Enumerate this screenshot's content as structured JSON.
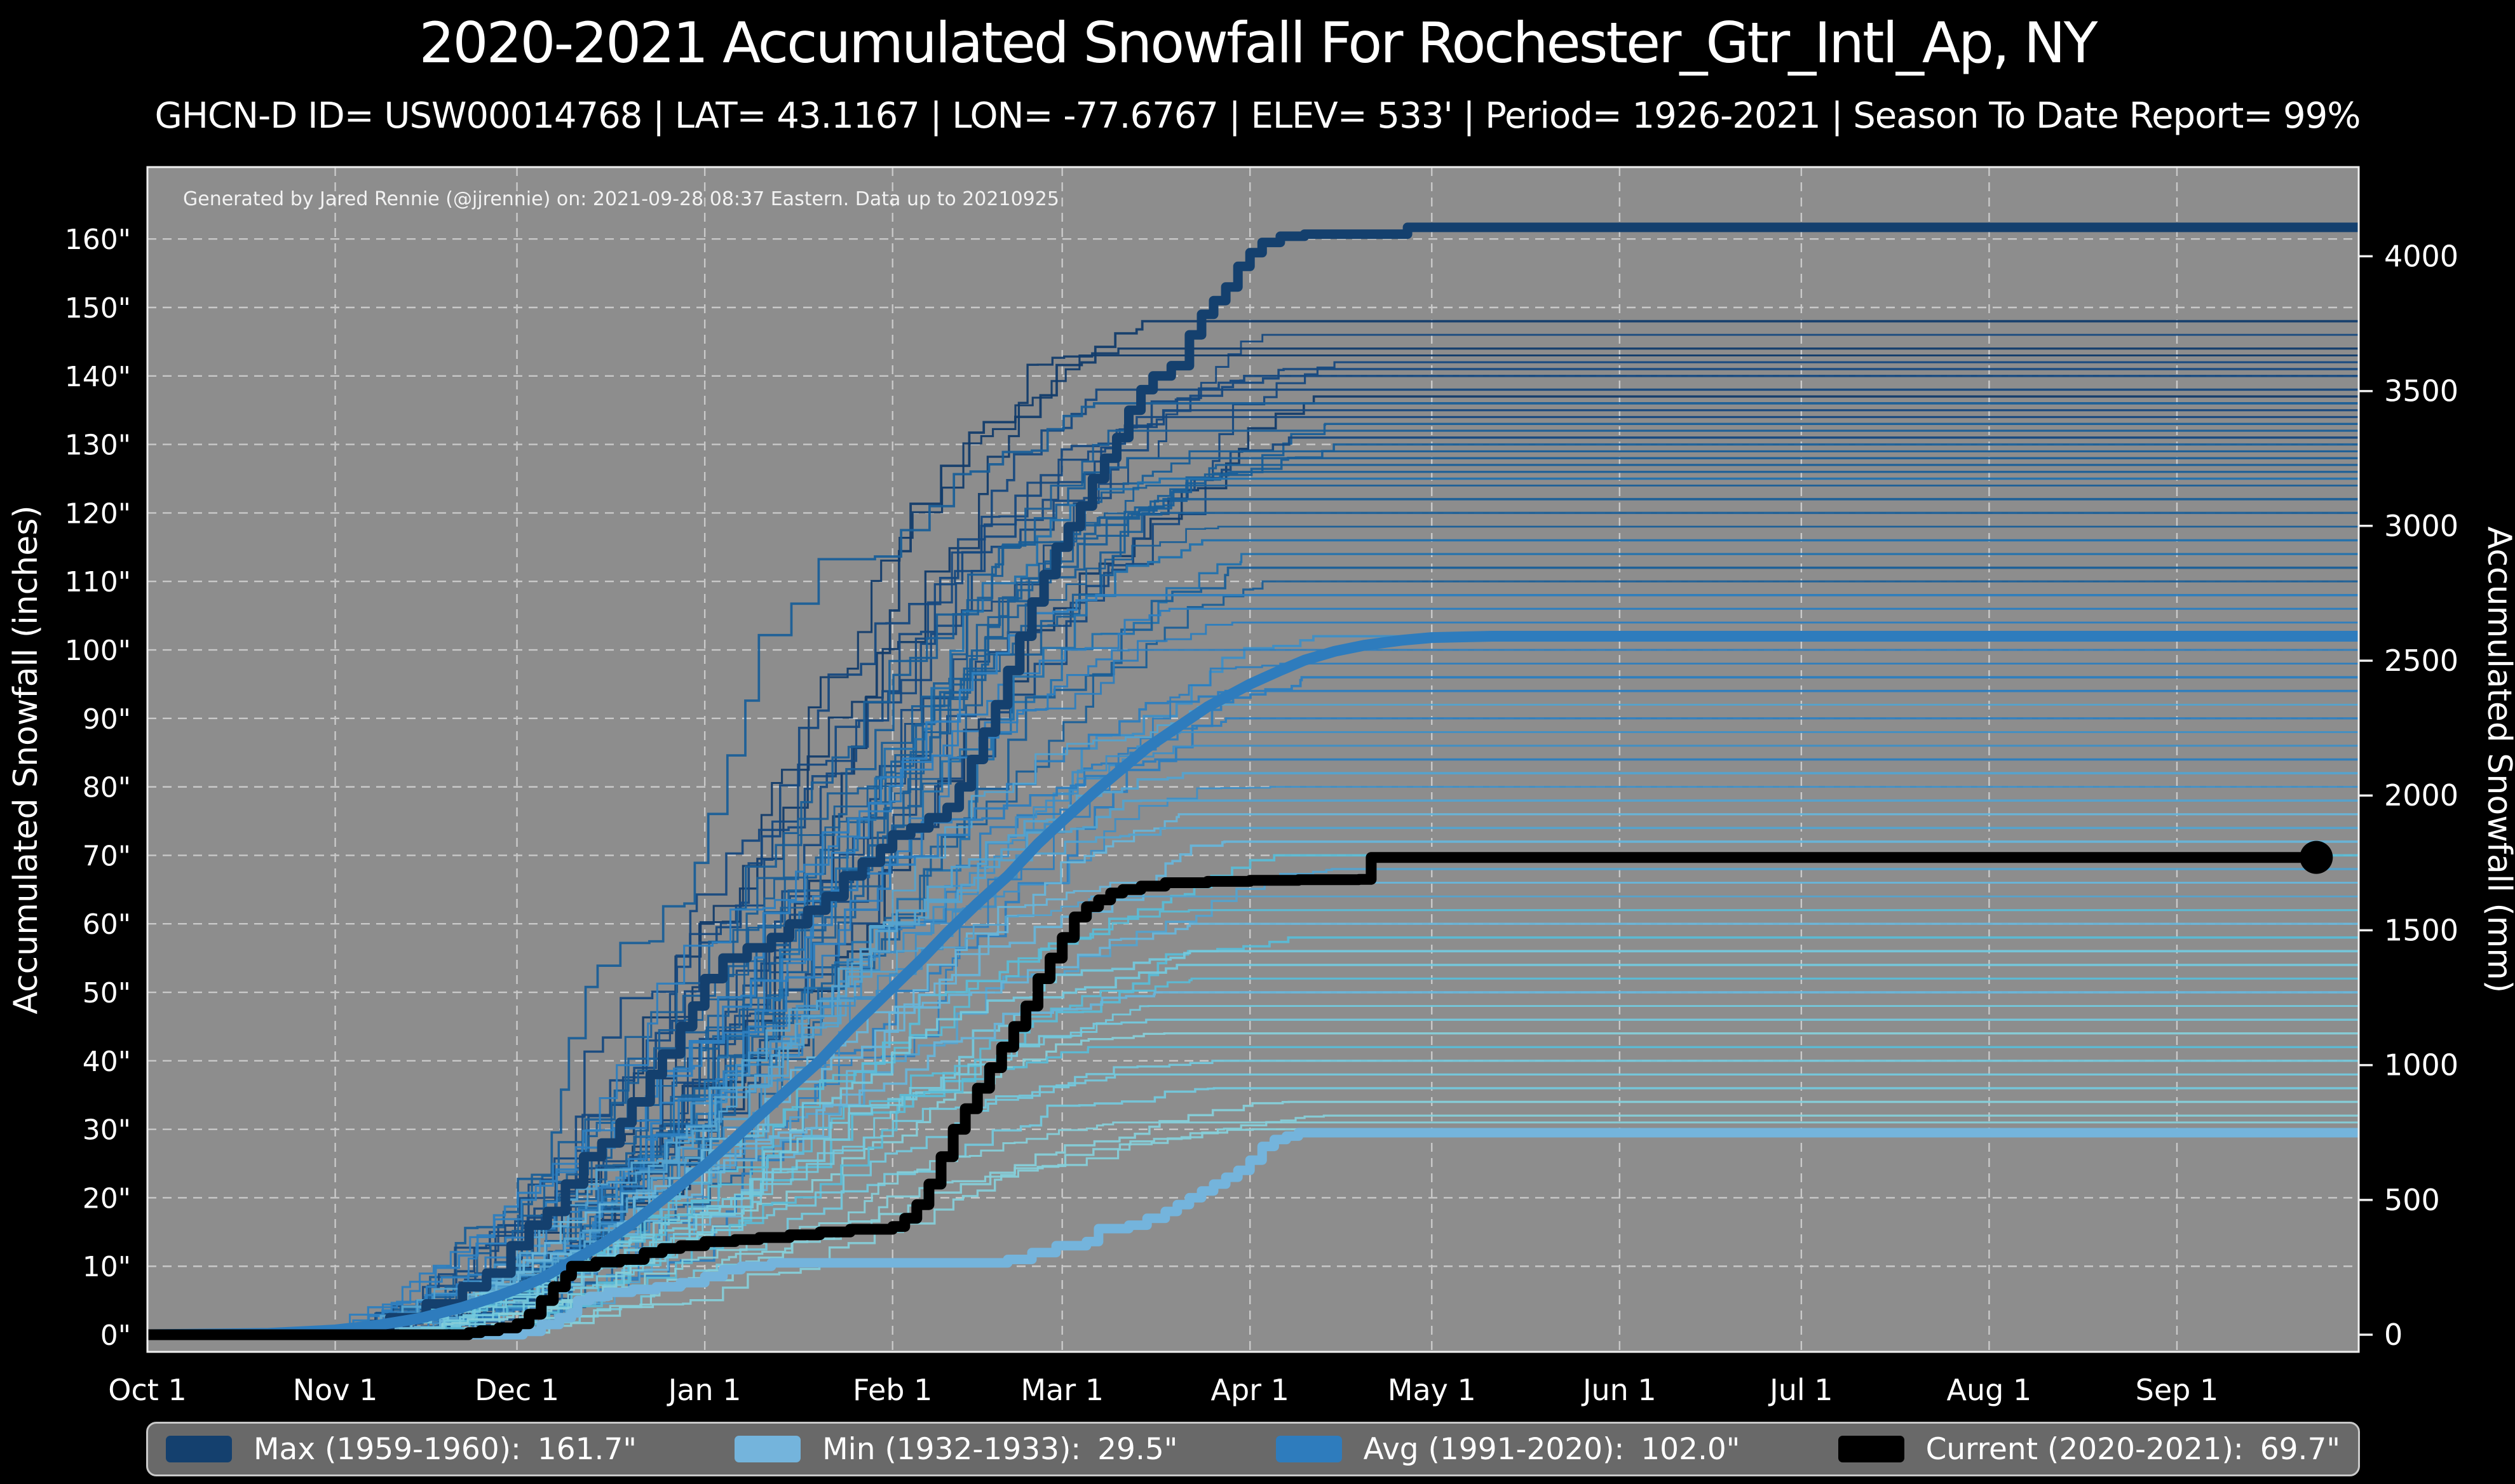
{
  "title": "2020-2021 Accumulated Snowfall For Rochester_Gtr_Intl_Ap, NY",
  "subtitle": "GHCN-D ID= USW00014768 | LAT= 43.1167 | LON= -77.6767 | ELEV= 533' | Period= 1926-2021 | Season To Date Report= 99%",
  "credit": "Generated by Jared Rennie (@jjrennie) on: 2021-09-28 08:37 Eastern. Data up to 20210925",
  "colors": {
    "background": "#000000",
    "plot_background": "#8d8d8d",
    "grid": "#d8d8d8",
    "spine": "#efefef",
    "text": "#ffffff",
    "max": "#14406e",
    "min": "#74b4dc",
    "avg": "#2e7cbd",
    "current": "#000000",
    "season_palette": [
      "#123c6b",
      "#16497f",
      "#1a5f98",
      "#2272ae",
      "#2d7ebf",
      "#3f8fc6",
      "#54a3cf",
      "#68b5d9",
      "#5bbcd6",
      "#74c8dc",
      "#86cfd9"
    ]
  },
  "legend": {
    "items": [
      {
        "label": "Max (1959-1960):",
        "value": "161.7\"",
        "color": "#14406e"
      },
      {
        "label": "Min (1932-1933):",
        "value": "29.5\"",
        "color": "#74b4dc"
      },
      {
        "label": "Avg (1991-2020):",
        "value": "102.0\"",
        "color": "#2e7cbd"
      },
      {
        "label": "Current (2020-2021):",
        "value": "69.7\"",
        "color": "#000000"
      }
    ]
  },
  "chart_data": {
    "type": "line",
    "title": "2020-2021 Accumulated Snowfall For Rochester_Gtr_Intl_Ap, NY",
    "x_axis": {
      "tick_labels": [
        "Oct 1",
        "Nov 1",
        "Dec 1",
        "Jan 1",
        "Feb 1",
        "Mar 1",
        "Apr 1",
        "May 1",
        "Jun 1",
        "Jul 1",
        "Aug 1",
        "Sep 1"
      ],
      "tick_days": [
        0,
        31,
        61,
        92,
        123,
        151,
        182,
        212,
        243,
        273,
        304,
        335
      ],
      "range_days": [
        0,
        365
      ]
    },
    "y_left": {
      "label": "Accumulated Snowfall (inches)",
      "tick_values": [
        0,
        10,
        20,
        30,
        40,
        50,
        60,
        70,
        80,
        90,
        100,
        110,
        120,
        130,
        140,
        150,
        160
      ],
      "tick_suffix": "\"",
      "range": [
        -2.5,
        170.5
      ],
      "grid": true
    },
    "y_right": {
      "label": "Accumulated Snowfall (mm)",
      "tick_values": [
        0,
        500,
        1000,
        1500,
        2000,
        2500,
        3000,
        3500,
        4000
      ],
      "mm_per_inch": 25.4
    },
    "series": [
      {
        "name": "Max (1959-1960)",
        "final_label": "161.7\"",
        "color_key": "max",
        "width": 15,
        "step": true,
        "points": [
          [
            0,
            0
          ],
          [
            25,
            0
          ],
          [
            33,
            0.8
          ],
          [
            40,
            2.5
          ],
          [
            46,
            4.5
          ],
          [
            52,
            7
          ],
          [
            56,
            9
          ],
          [
            60,
            13
          ],
          [
            63,
            16
          ],
          [
            66,
            18
          ],
          [
            69,
            22
          ],
          [
            72,
            26
          ],
          [
            75,
            28
          ],
          [
            78,
            31
          ],
          [
            80,
            34
          ],
          [
            83,
            38
          ],
          [
            85,
            41
          ],
          [
            88,
            45
          ],
          [
            90,
            48
          ],
          [
            92,
            52
          ],
          [
            95,
            55
          ],
          [
            99,
            56.5
          ],
          [
            103,
            58
          ],
          [
            106,
            60
          ],
          [
            109,
            62
          ],
          [
            112,
            64
          ],
          [
            115,
            67
          ],
          [
            118,
            69
          ],
          [
            121,
            71
          ],
          [
            123,
            73
          ],
          [
            126,
            74
          ],
          [
            129,
            75.5
          ],
          [
            132,
            77
          ],
          [
            134,
            80
          ],
          [
            136,
            84
          ],
          [
            138,
            88
          ],
          [
            140,
            92
          ],
          [
            142,
            97
          ],
          [
            144,
            102
          ],
          [
            146,
            107
          ],
          [
            148,
            111
          ],
          [
            150,
            115
          ],
          [
            152,
            118
          ],
          [
            154,
            121
          ],
          [
            156,
            125
          ],
          [
            158,
            128
          ],
          [
            160,
            131
          ],
          [
            162,
            135
          ],
          [
            164,
            138
          ],
          [
            166,
            140
          ],
          [
            169,
            141.5
          ],
          [
            172,
            146
          ],
          [
            174,
            149
          ],
          [
            176,
            151
          ],
          [
            178,
            153
          ],
          [
            180,
            156
          ],
          [
            182,
            158
          ],
          [
            184,
            159.5
          ],
          [
            187,
            160.4
          ],
          [
            191,
            160.7
          ],
          [
            205,
            160.7
          ],
          [
            208,
            161.7
          ],
          [
            365,
            161.7
          ]
        ]
      },
      {
        "name": "Min (1932-1933)",
        "final_label": "29.5\"",
        "color_key": "min",
        "width": 15,
        "step": true,
        "points": [
          [
            0,
            0
          ],
          [
            58,
            0
          ],
          [
            62,
            0.5
          ],
          [
            65,
            1.5
          ],
          [
            68,
            2.5
          ],
          [
            70,
            3.2
          ],
          [
            71,
            5
          ],
          [
            73,
            5.6
          ],
          [
            76,
            6.2
          ],
          [
            80,
            6.6
          ],
          [
            84,
            7
          ],
          [
            88,
            7.6
          ],
          [
            92,
            8.5
          ],
          [
            95,
            9.5
          ],
          [
            98,
            10
          ],
          [
            103,
            10.5
          ],
          [
            138,
            10.5
          ],
          [
            142,
            11
          ],
          [
            146,
            12
          ],
          [
            150,
            13
          ],
          [
            155,
            13.6
          ],
          [
            157,
            15.5
          ],
          [
            162,
            16
          ],
          [
            165,
            17
          ],
          [
            168,
            18
          ],
          [
            170,
            19
          ],
          [
            172,
            20
          ],
          [
            174,
            21
          ],
          [
            176,
            22
          ],
          [
            178,
            23
          ],
          [
            180,
            24
          ],
          [
            182,
            25.5
          ],
          [
            184,
            27.5
          ],
          [
            186,
            28.5
          ],
          [
            188,
            29
          ],
          [
            190,
            29.5
          ],
          [
            365,
            29.5
          ]
        ]
      },
      {
        "name": "Avg (1991-2020)",
        "final_label": "102.0\"",
        "color_key": "avg",
        "width": 17,
        "step": false,
        "points": [
          [
            0,
            0
          ],
          [
            20,
            0.2
          ],
          [
            31,
            0.7
          ],
          [
            38,
            1.4
          ],
          [
            45,
            2.4
          ],
          [
            52,
            4
          ],
          [
            58,
            5.7
          ],
          [
            61,
            6.7
          ],
          [
            65,
            8.2
          ],
          [
            70,
            10.7
          ],
          [
            75,
            13.2
          ],
          [
            80,
            16.2
          ],
          [
            85,
            19.7
          ],
          [
            92,
            24.7
          ],
          [
            97,
            28.7
          ],
          [
            101,
            32
          ],
          [
            106,
            36
          ],
          [
            111,
            40
          ],
          [
            116,
            44.7
          ],
          [
            123,
            50.7
          ],
          [
            128,
            55
          ],
          [
            132,
            58.7
          ],
          [
            137,
            63
          ],
          [
            142,
            67
          ],
          [
            147,
            71.7
          ],
          [
            151,
            75
          ],
          [
            156,
            79
          ],
          [
            160,
            82
          ],
          [
            165,
            85.7
          ],
          [
            170,
            88.7
          ],
          [
            175,
            91.7
          ],
          [
            182,
            95
          ],
          [
            187,
            97
          ],
          [
            191,
            98.5
          ],
          [
            196,
            99.8
          ],
          [
            201,
            100.7
          ],
          [
            207,
            101.4
          ],
          [
            212,
            101.8
          ],
          [
            222,
            102
          ],
          [
            365,
            102
          ]
        ]
      },
      {
        "name": "Current (2020-2021)",
        "final_label": "69.7\"",
        "color_key": "current",
        "width": 17,
        "step": true,
        "end_marker": {
          "day": 358,
          "value": 69.7,
          "radius": 26
        },
        "points": [
          [
            0,
            0
          ],
          [
            50,
            0
          ],
          [
            53,
            0.3
          ],
          [
            55,
            0.6
          ],
          [
            58,
            1
          ],
          [
            61,
            1.6
          ],
          [
            63,
            3
          ],
          [
            65,
            5
          ],
          [
            67,
            7
          ],
          [
            69,
            8.6
          ],
          [
            70,
            10
          ],
          [
            74,
            10.6
          ],
          [
            78,
            11
          ],
          [
            82,
            12
          ],
          [
            85,
            12.6
          ],
          [
            88,
            13
          ],
          [
            92,
            13.6
          ],
          [
            97,
            13.9
          ],
          [
            101,
            14.2
          ],
          [
            106,
            14.6
          ],
          [
            111,
            15
          ],
          [
            116,
            15.4
          ],
          [
            123,
            15.8
          ],
          [
            125,
            17
          ],
          [
            127,
            19
          ],
          [
            129,
            22
          ],
          [
            131,
            26
          ],
          [
            133,
            30
          ],
          [
            135,
            33
          ],
          [
            137,
            36
          ],
          [
            139,
            39
          ],
          [
            141,
            42
          ],
          [
            143,
            45
          ],
          [
            145,
            48
          ],
          [
            147,
            52
          ],
          [
            149,
            55
          ],
          [
            151,
            58
          ],
          [
            153,
            61
          ],
          [
            155,
            62.5
          ],
          [
            157,
            63.5
          ],
          [
            159,
            64.5
          ],
          [
            161,
            65
          ],
          [
            164,
            65.5
          ],
          [
            168,
            66
          ],
          [
            175,
            66.2
          ],
          [
            182,
            66.35
          ],
          [
            190,
            66.45
          ],
          [
            200,
            66.5
          ],
          [
            202,
            69.7
          ],
          [
            358,
            69.7
          ]
        ]
      }
    ],
    "background_seasons": {
      "description": "one thin stepped line per season 1926-2020, colored from dark blue (high totals) to light cyan (low totals)",
      "line_width": 2.7,
      "final_values": [
        148,
        146,
        144,
        143,
        142,
        141,
        140,
        138,
        137,
        136,
        135,
        134,
        133,
        132,
        131,
        130,
        129,
        128,
        127,
        126,
        125,
        124,
        122,
        120,
        118,
        116,
        114,
        112,
        110,
        108,
        106,
        104,
        102,
        100,
        98,
        96,
        94,
        92,
        90,
        88,
        86,
        84,
        82,
        80,
        78,
        76,
        74,
        72,
        70,
        68,
        66,
        64,
        62,
        60,
        58,
        56,
        54,
        52,
        50,
        48,
        46,
        44,
        42,
        40,
        38,
        36,
        34,
        32,
        31,
        30
      ]
    }
  }
}
